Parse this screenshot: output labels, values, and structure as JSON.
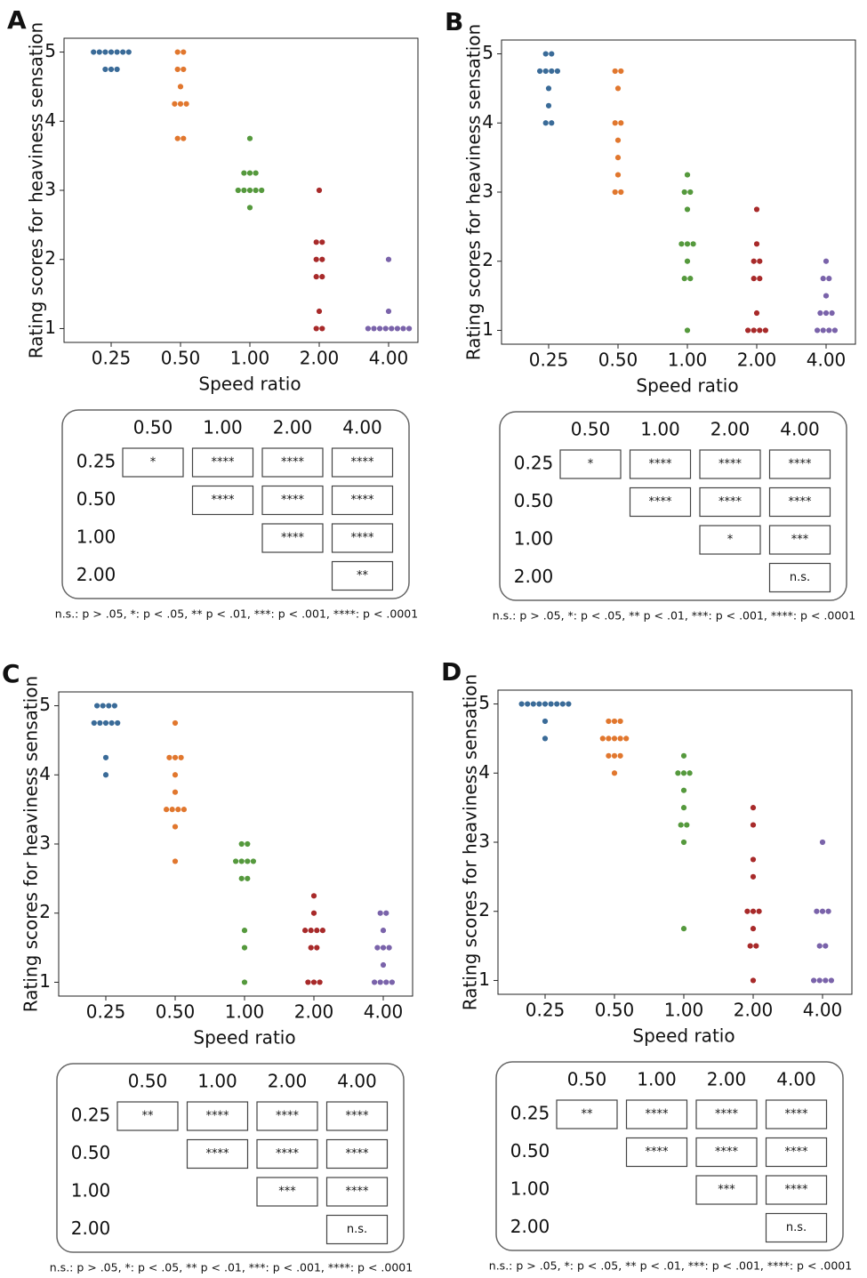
{
  "chart_data": [
    {
      "label": "A",
      "type": "swarm",
      "ylabel": "Rating scores for heaviness sensation",
      "xlabel": "Speed ratio",
      "categories": [
        "0.25",
        "0.50",
        "1.00",
        "2.00",
        "4.00"
      ],
      "colors": [
        "#3a6b98",
        "#e1772e",
        "#55993d",
        "#a82a2a",
        "#7a63aa"
      ],
      "values": [
        [
          5,
          5,
          5,
          5,
          5,
          5,
          5,
          4.75,
          4.75,
          4.75
        ],
        [
          5,
          5,
          4.75,
          4.75,
          4.5,
          4.25,
          4.25,
          4.25,
          3.75,
          3.75
        ],
        [
          3.75,
          3.25,
          3.25,
          3.25,
          3,
          3,
          3,
          3,
          3,
          2.75
        ],
        [
          3,
          2.25,
          2.25,
          2,
          2,
          1.75,
          1.75,
          1.25,
          1,
          1
        ],
        [
          2,
          1.25,
          1,
          1,
          1,
          1,
          1,
          1,
          1,
          1
        ]
      ],
      "ylim": [
        0.8,
        5.2
      ],
      "yticks": [
        1,
        2,
        3,
        4,
        5
      ],
      "significance": {
        "columns": [
          "0.50",
          "1.00",
          "2.00",
          "4.00"
        ],
        "rows": [
          {
            "label": "0.25",
            "cells": [
              "*",
              "****",
              "****",
              "****"
            ]
          },
          {
            "label": "0.50",
            "cells": [
              null,
              "****",
              "****",
              "****"
            ]
          },
          {
            "label": "1.00",
            "cells": [
              null,
              null,
              "****",
              "****"
            ]
          },
          {
            "label": "2.00",
            "cells": [
              null,
              null,
              null,
              "**"
            ]
          }
        ],
        "note": "n.s.: p > .05, *: p < .05, ** p < .01, ***: p < .001, ****: p < .0001"
      }
    },
    {
      "label": "B",
      "type": "swarm",
      "ylabel": "Rating scores for heaviness sensation",
      "xlabel": "Speed ratio",
      "categories": [
        "0.25",
        "0.50",
        "1.00",
        "2.00",
        "4.00"
      ],
      "colors": [
        "#3a6b98",
        "#e1772e",
        "#55993d",
        "#a82a2a",
        "#7a63aa"
      ],
      "values": [
        [
          5,
          5,
          4.75,
          4.75,
          4.75,
          4.75,
          4.5,
          4.25,
          4,
          4
        ],
        [
          4.75,
          4.75,
          4.5,
          4,
          4,
          3.75,
          3.5,
          3.25,
          3,
          3
        ],
        [
          3.25,
          3,
          3,
          2.75,
          2.25,
          2.25,
          2.25,
          2,
          1.75,
          1.75,
          1
        ],
        [
          2.75,
          2.25,
          2,
          2,
          1.75,
          1.75,
          1.25,
          1,
          1,
          1,
          1
        ],
        [
          2,
          1.75,
          1.75,
          1.5,
          1.25,
          1.25,
          1.25,
          1,
          1,
          1,
          1
        ]
      ],
      "ylim": [
        0.8,
        5.2
      ],
      "yticks": [
        1,
        2,
        3,
        4,
        5
      ],
      "significance": {
        "columns": [
          "0.50",
          "1.00",
          "2.00",
          "4.00"
        ],
        "rows": [
          {
            "label": "0.25",
            "cells": [
              "*",
              "****",
              "****",
              "****"
            ]
          },
          {
            "label": "0.50",
            "cells": [
              null,
              "****",
              "****",
              "****"
            ]
          },
          {
            "label": "1.00",
            "cells": [
              null,
              null,
              "*",
              "***"
            ]
          },
          {
            "label": "2.00",
            "cells": [
              null,
              null,
              null,
              "n.s."
            ]
          }
        ],
        "note": "n.s.: p > .05, *: p < .05, ** p < .01, ***: p < .001, ****: p < .0001"
      }
    },
    {
      "label": "C",
      "type": "swarm",
      "ylabel": "Rating scores for heaviness sensation",
      "xlabel": "Speed ratio",
      "categories": [
        "0.25",
        "0.50",
        "1.00",
        "2.00",
        "4.00"
      ],
      "colors": [
        "#3a6b98",
        "#e1772e",
        "#55993d",
        "#a82a2a",
        "#7a63aa"
      ],
      "values": [
        [
          5,
          5,
          5,
          5,
          4.75,
          4.75,
          4.75,
          4.75,
          4.75,
          4.25,
          4
        ],
        [
          4.75,
          4.25,
          4.25,
          4.25,
          4,
          3.75,
          3.5,
          3.5,
          3.5,
          3.5,
          3.25,
          2.75
        ],
        [
          3,
          3,
          2.75,
          2.75,
          2.75,
          2.75,
          2.5,
          2.5,
          1.75,
          1.5,
          1
        ],
        [
          2.25,
          2,
          1.75,
          1.75,
          1.75,
          1.75,
          1.5,
          1.5,
          1,
          1,
          1
        ],
        [
          2,
          2,
          1.75,
          1.5,
          1.5,
          1.5,
          1.25,
          1,
          1,
          1,
          1
        ]
      ],
      "ylim": [
        0.8,
        5.2
      ],
      "yticks": [
        1,
        2,
        3,
        4,
        5
      ],
      "significance": {
        "columns": [
          "0.50",
          "1.00",
          "2.00",
          "4.00"
        ],
        "rows": [
          {
            "label": "0.25",
            "cells": [
              "**",
              "****",
              "****",
              "****"
            ]
          },
          {
            "label": "0.50",
            "cells": [
              null,
              "****",
              "****",
              "****"
            ]
          },
          {
            "label": "1.00",
            "cells": [
              null,
              null,
              "***",
              "****"
            ]
          },
          {
            "label": "2.00",
            "cells": [
              null,
              null,
              null,
              "n.s."
            ]
          }
        ],
        "note": "n.s.: p > .05, *: p < .05, ** p < .01, ***: p < .001, ****: p < .0001"
      }
    },
    {
      "label": "D",
      "type": "swarm",
      "ylabel": "Rating scores for heaviness sensation",
      "xlabel": "Speed ratio",
      "categories": [
        "0.25",
        "0.50",
        "1.00",
        "2.00",
        "4.00"
      ],
      "colors": [
        "#3a6b98",
        "#e1772e",
        "#55993d",
        "#a82a2a",
        "#7a63aa"
      ],
      "values": [
        [
          5,
          5,
          5,
          5,
          5,
          5,
          5,
          5,
          5,
          4.75,
          4.5
        ],
        [
          4.75,
          4.75,
          4.75,
          4.5,
          4.5,
          4.5,
          4.5,
          4.5,
          4.25,
          4.25,
          4.25,
          4
        ],
        [
          4.25,
          4,
          4,
          4,
          3.75,
          3.5,
          3.25,
          3.25,
          3,
          1.75
        ],
        [
          3.5,
          3.25,
          2.75,
          2.5,
          2,
          2,
          2,
          1.75,
          1.5,
          1.5,
          1
        ],
        [
          3,
          2,
          2,
          2,
          1.5,
          1.5,
          1,
          1,
          1,
          1
        ]
      ],
      "ylim": [
        0.8,
        5.2
      ],
      "yticks": [
        1,
        2,
        3,
        4,
        5
      ],
      "significance": {
        "columns": [
          "0.50",
          "1.00",
          "2.00",
          "4.00"
        ],
        "rows": [
          {
            "label": "0.25",
            "cells": [
              "**",
              "****",
              "****",
              "****"
            ]
          },
          {
            "label": "0.50",
            "cells": [
              null,
              "****",
              "****",
              "****"
            ]
          },
          {
            "label": "1.00",
            "cells": [
              null,
              null,
              "***",
              "****"
            ]
          },
          {
            "label": "2.00",
            "cells": [
              null,
              null,
              null,
              "n.s."
            ]
          }
        ],
        "note": "n.s.: p > .05, *: p < .05, ** p < .01, ***: p < .001, ****: p < .0001"
      }
    }
  ]
}
